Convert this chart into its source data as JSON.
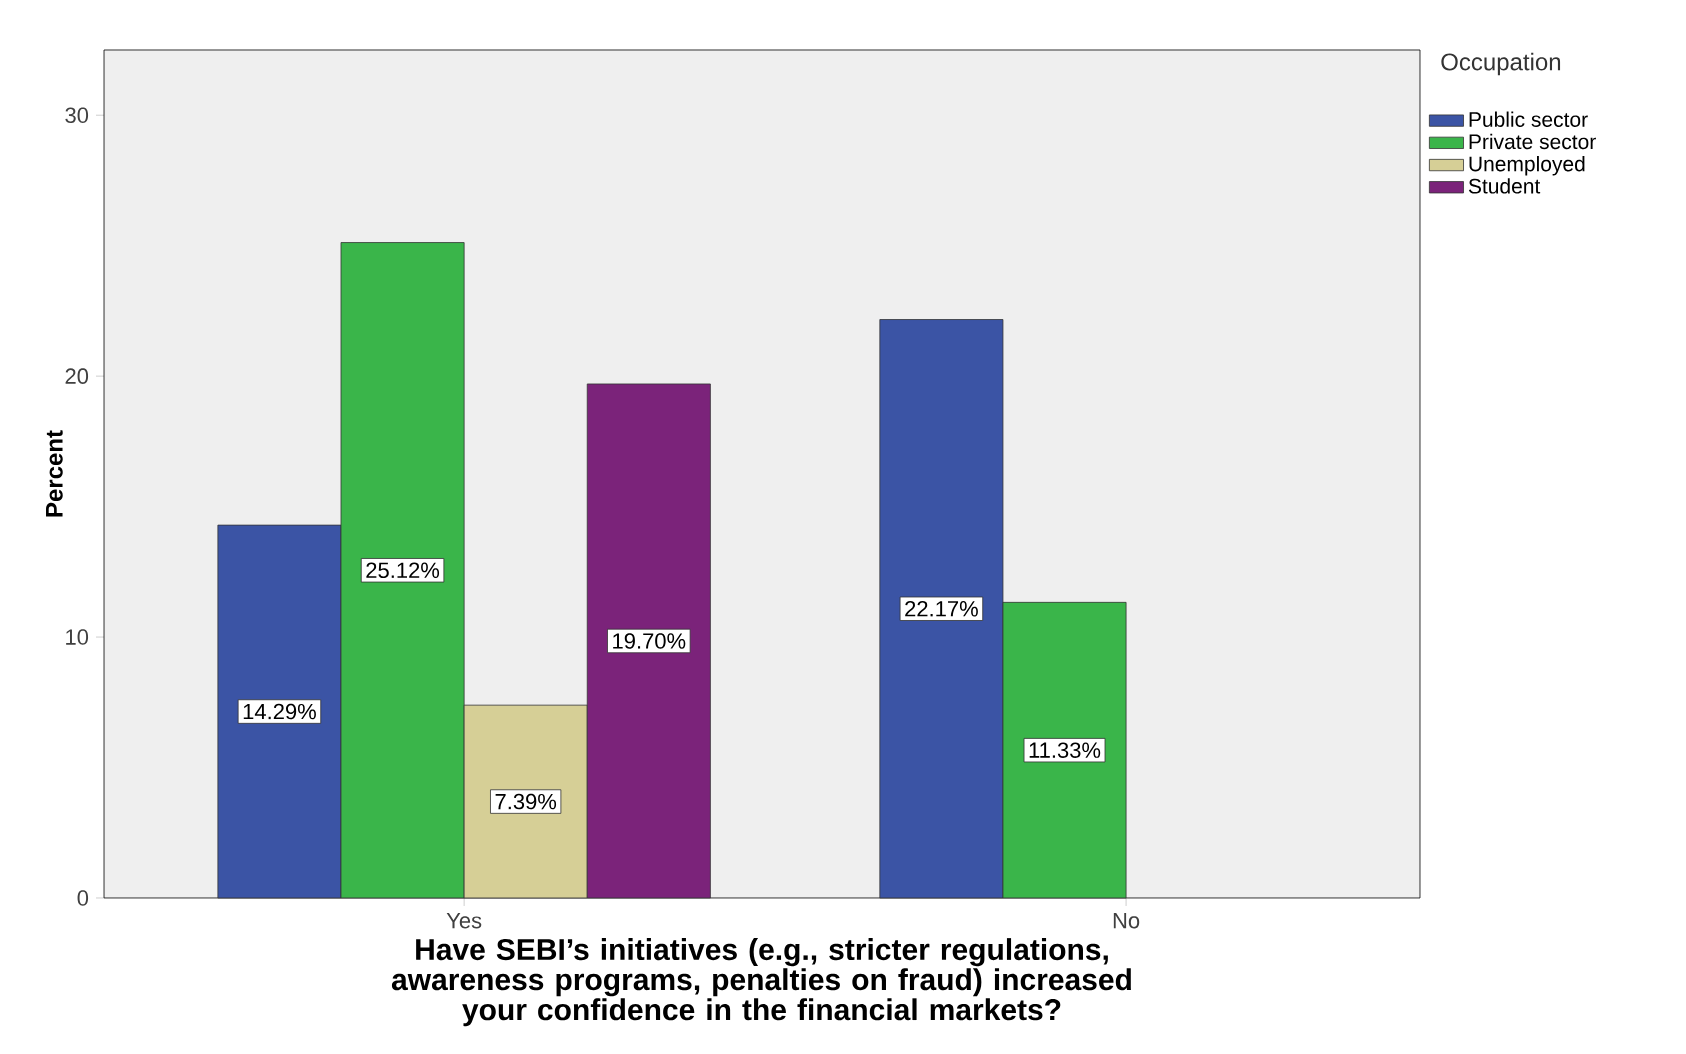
{
  "chart_data": {
    "type": "bar",
    "xlabel": "Have SEBI’s initiatives (e.g., stricter regulations, awareness programs, penalties on fraud) increased your confidence in the financial markets?",
    "ylabel": "Percent",
    "legend_title": "Occupation",
    "categories": [
      "Yes",
      "No"
    ],
    "series": [
      {
        "name": "Public sector",
        "color": "#3b54a5",
        "values": [
          14.29,
          22.17
        ],
        "value_labels": [
          "14.29%",
          "22.17%"
        ]
      },
      {
        "name": "Private sector",
        "color": "#3ab54a",
        "values": [
          25.12,
          11.33
        ],
        "value_labels": [
          "25.12%",
          "11.33%"
        ]
      },
      {
        "name": "Unemployed",
        "color": "#d6cf96",
        "values": [
          7.39,
          null
        ],
        "value_labels": [
          "7.39%",
          null
        ]
      },
      {
        "name": "Student",
        "color": "#7b237a",
        "values": [
          19.7,
          null
        ],
        "value_labels": [
          "19.70%",
          null
        ]
      }
    ],
    "ylim": [
      0,
      32.5
    ],
    "yticks": [
      0,
      10,
      20,
      30
    ],
    "legend": "right",
    "grid": false
  }
}
